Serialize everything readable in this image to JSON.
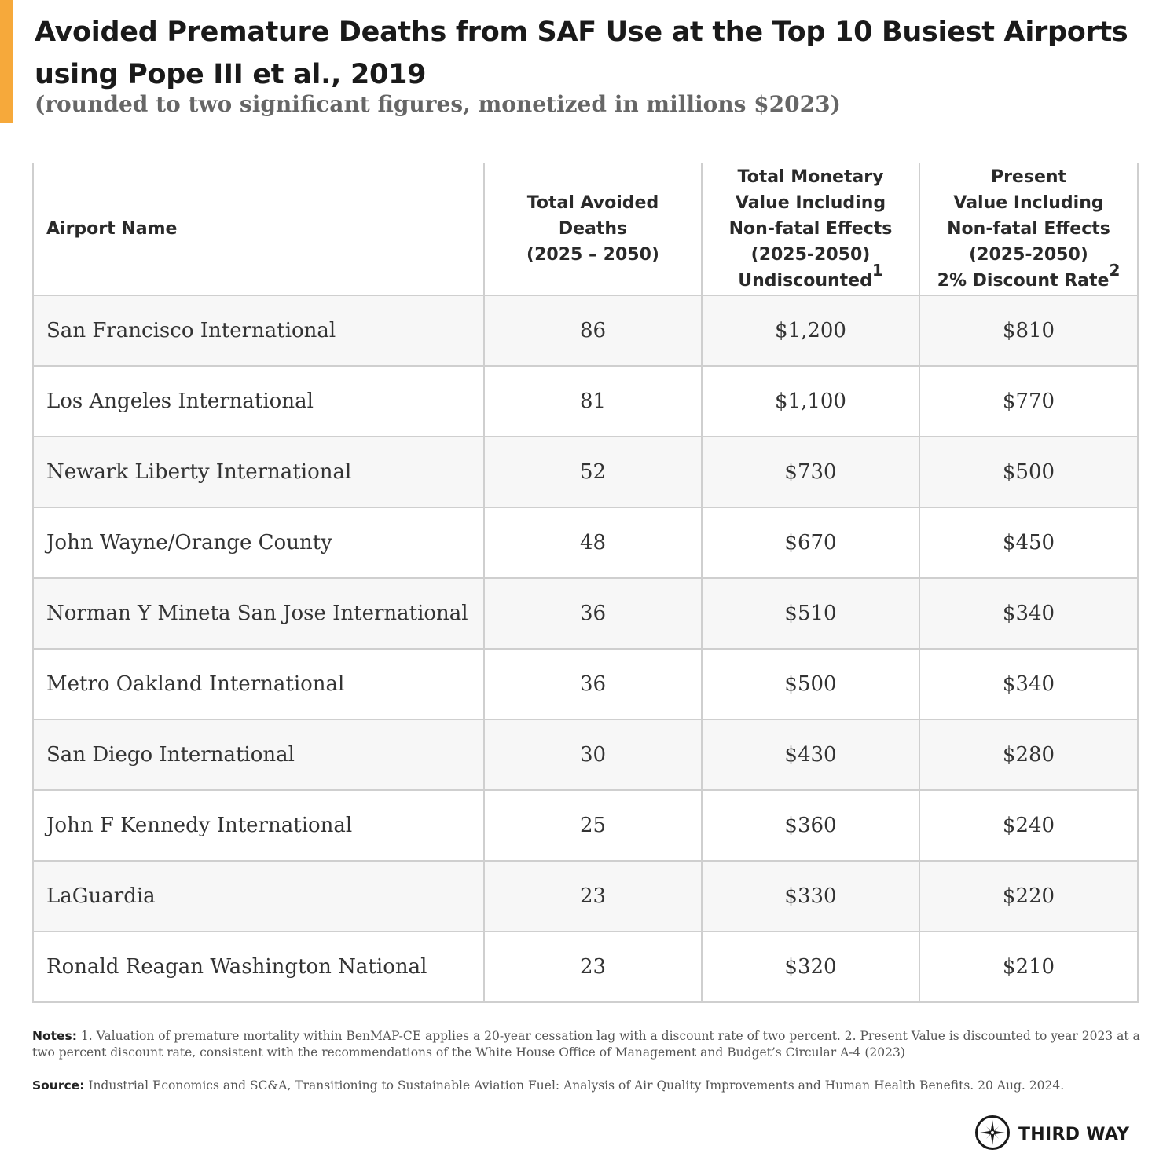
{
  "header": {
    "title": "Avoided Premature Deaths from SAF Use at the Top 10 Busiest Airports using Pope III et al., 2019",
    "subtitle": "(rounded to two significant figures, monetized in millions $2023)",
    "accent_color": "#F6A93B"
  },
  "table": {
    "columns": [
      {
        "lines": [
          "Airport Name"
        ],
        "sup": ""
      },
      {
        "lines": [
          "Total Avoided",
          "Deaths",
          "(2025 – 2050)"
        ],
        "sup": ""
      },
      {
        "lines": [
          "Total Monetary",
          "Value Including",
          "Non-fatal Effects",
          "(2025-2050)",
          "Undiscounted"
        ],
        "sup": "1"
      },
      {
        "lines": [
          "Present",
          "Value Including",
          "Non-fatal Effects",
          "(2025-2050)",
          "2% Discount Rate"
        ],
        "sup": "2"
      }
    ],
    "rows": [
      {
        "airport": "San Francisco International",
        "deaths": "86",
        "undiscounted": "$1,200",
        "present_value": "$810"
      },
      {
        "airport": "Los Angeles International",
        "deaths": "81",
        "undiscounted": "$1,100",
        "present_value": "$770"
      },
      {
        "airport": "Newark Liberty International",
        "deaths": "52",
        "undiscounted": "$730",
        "present_value": "$500"
      },
      {
        "airport": "John Wayne/Orange County",
        "deaths": "48",
        "undiscounted": "$670",
        "present_value": "$450"
      },
      {
        "airport": "Norman Y Mineta San Jose International",
        "deaths": "36",
        "undiscounted": "$510",
        "present_value": "$340"
      },
      {
        "airport": "Metro Oakland International",
        "deaths": "36",
        "undiscounted": "$500",
        "present_value": "$340"
      },
      {
        "airport": "San Diego International",
        "deaths": "30",
        "undiscounted": "$430",
        "present_value": "$280"
      },
      {
        "airport": "John F Kennedy International",
        "deaths": "25",
        "undiscounted": "$360",
        "present_value": "$240"
      },
      {
        "airport": "LaGuardia",
        "deaths": "23",
        "undiscounted": "$330",
        "present_value": "$220"
      },
      {
        "airport": "Ronald Reagan Washington National",
        "deaths": "23",
        "undiscounted": "$320",
        "present_value": "$210"
      }
    ]
  },
  "footer": {
    "notes_label": "Notes:",
    "notes_text": " 1. Valuation of premature mortality within BenMAP-CE applies a 20-year cessation lag with a discount rate of two percent. 2. Present Value is discounted to year 2023 at a two percent discount rate, consistent with the recommendations of the White House Office of Management and Budget’s Circular A-4 (2023)",
    "source_label": "Source:",
    "source_text": " Industrial Economics and SC&A, Transitioning to Sustainable Aviation Fuel: Analysis of Air Quality Improvements and Human Health Benefits. 20 Aug. 2024."
  },
  "logo": {
    "text": "THIRD WAY",
    "icon": "compass-star-icon"
  }
}
